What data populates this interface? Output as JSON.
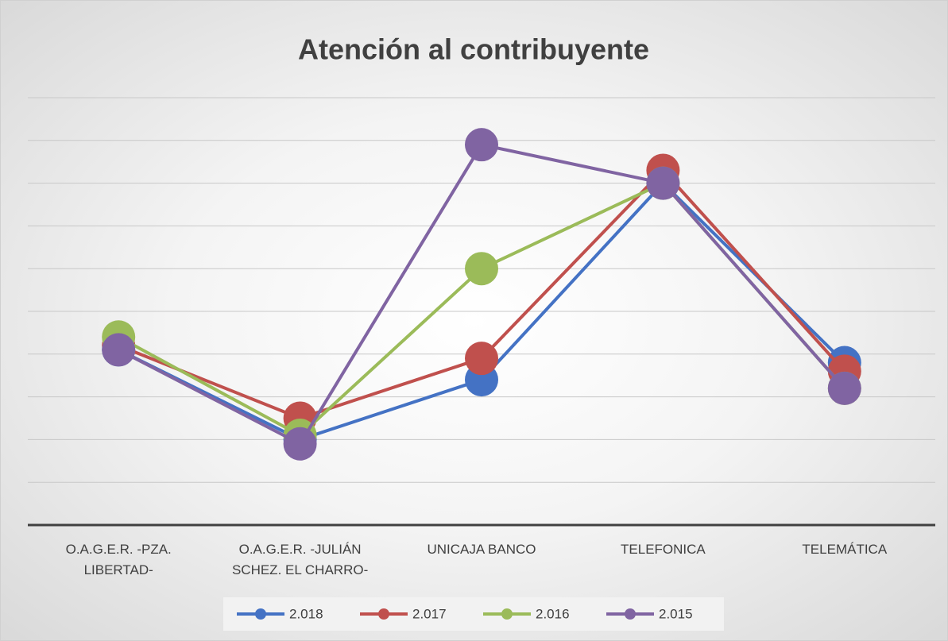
{
  "chart_data": {
    "type": "line",
    "title": "Atención al contribuyente",
    "categories": [
      "O.A.G.E.R. -PZA. LIBERTAD-",
      "O.A.G.E.R. -JULIÁN SCHEZ. EL CHARRO-",
      "UNICAJA BANCO",
      "TELEFONICA",
      "TELEMÁTICA"
    ],
    "series": [
      {
        "name": "2.018",
        "color": "#4472c4",
        "values": [
          4.1,
          2.0,
          3.4,
          8.0,
          3.8
        ]
      },
      {
        "name": "2.017",
        "color": "#c0504d",
        "values": [
          4.2,
          2.5,
          3.9,
          8.3,
          3.6
        ]
      },
      {
        "name": "2.016",
        "color": "#9bbb59",
        "values": [
          4.4,
          2.1,
          6.0,
          8.0,
          3.2
        ]
      },
      {
        "name": "2.015",
        "color": "#8064a2",
        "values": [
          4.1,
          1.9,
          8.9,
          8.0,
          3.2
        ]
      }
    ],
    "ylim": [
      0,
      10
    ],
    "yticks": [
      0,
      1,
      2,
      3,
      4,
      5,
      6,
      7,
      8,
      9,
      10
    ],
    "grid": true,
    "legend": "bottom"
  }
}
